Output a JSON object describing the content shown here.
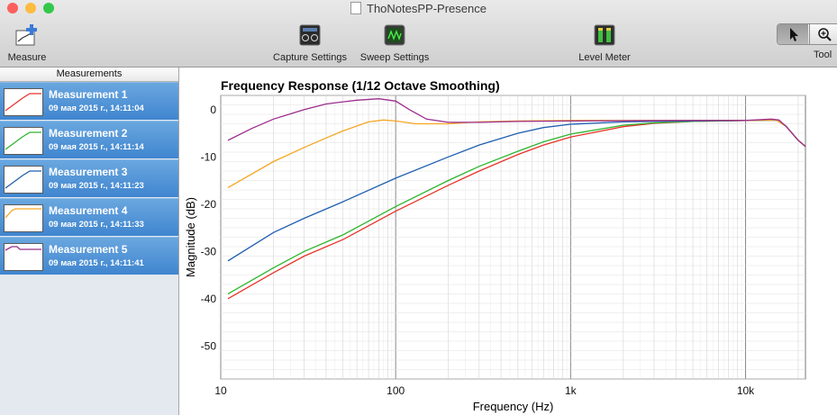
{
  "window": {
    "title": "ThoNotesPP-Presence",
    "traffic_colors": [
      "#fc605c",
      "#fdbc40",
      "#34c84a"
    ]
  },
  "toolbar": {
    "measure_label": "Measure",
    "capture_label": "Capture Settings",
    "sweep_label": "Sweep Settings",
    "level_label": "Level Meter",
    "tool_label": "Tool"
  },
  "sidebar": {
    "header": "Measurements",
    "items": [
      {
        "name": "Measurement 1",
        "date": "09 мая 2015 г., 14:11:04",
        "color": "#e8342a"
      },
      {
        "name": "Measurement 2",
        "date": "09 мая 2015 г., 14:11:14",
        "color": "#2db52d"
      },
      {
        "name": "Measurement 3",
        "date": "09 мая 2015 г., 14:11:23",
        "color": "#1f5fb0"
      },
      {
        "name": "Measurement 4",
        "date": "09 мая 2015 г., 14:11:33",
        "color": "#f5a623"
      },
      {
        "name": "Measurement 5",
        "date": "09 мая 2015 г., 14:11:41",
        "color": "#9b2d8c"
      }
    ]
  },
  "chart_data": {
    "type": "line",
    "title": "Frequency Response (1/12 Octave Smoothing)",
    "xlabel": "Frequency (Hz)",
    "ylabel": "Magnitude (dB)",
    "x_scale": "log",
    "xlim": [
      10,
      22000
    ],
    "ylim": [
      -57,
      3
    ],
    "x_ticks": [
      {
        "v": 10,
        "label": "10"
      },
      {
        "v": 100,
        "label": "100"
      },
      {
        "v": 1000,
        "label": "1k"
      },
      {
        "v": 10000,
        "label": "10k"
      }
    ],
    "y_ticks": [
      0,
      -10,
      -20,
      -30,
      -40,
      -50
    ],
    "grid": true,
    "series": [
      {
        "name": "Measurement 1",
        "color": "#e8342a",
        "points": [
          [
            11,
            -40
          ],
          [
            20,
            -34.5
          ],
          [
            30,
            -31
          ],
          [
            50,
            -27.5
          ],
          [
            100,
            -21.5
          ],
          [
            200,
            -16
          ],
          [
            300,
            -13
          ],
          [
            500,
            -9.5
          ],
          [
            700,
            -7.5
          ],
          [
            1000,
            -5.8
          ],
          [
            2000,
            -3.6
          ],
          [
            3000,
            -2.9
          ],
          [
            5000,
            -2.5
          ],
          [
            10000,
            -2.3
          ],
          [
            15000,
            -2.2
          ],
          [
            17000,
            -3.5
          ],
          [
            20000,
            -6.5
          ],
          [
            22000,
            -7.8
          ]
        ]
      },
      {
        "name": "Measurement 2",
        "color": "#2db52d",
        "points": [
          [
            11,
            -39
          ],
          [
            20,
            -33.5
          ],
          [
            30,
            -30
          ],
          [
            50,
            -26.5
          ],
          [
            100,
            -20.5
          ],
          [
            200,
            -15
          ],
          [
            300,
            -12
          ],
          [
            500,
            -8.8
          ],
          [
            700,
            -6.8
          ],
          [
            1000,
            -5.2
          ],
          [
            2000,
            -3.3
          ],
          [
            3000,
            -2.8
          ],
          [
            5000,
            -2.5
          ],
          [
            10000,
            -2.3
          ],
          [
            15000,
            -2.2
          ],
          [
            17000,
            -3.5
          ],
          [
            20000,
            -6.5
          ],
          [
            22000,
            -7.8
          ]
        ]
      },
      {
        "name": "Measurement 3",
        "color": "#1f5fb0",
        "points": [
          [
            11,
            -32
          ],
          [
            20,
            -26
          ],
          [
            30,
            -23
          ],
          [
            50,
            -19.5
          ],
          [
            100,
            -14.5
          ],
          [
            200,
            -10
          ],
          [
            300,
            -7.5
          ],
          [
            500,
            -5
          ],
          [
            700,
            -3.8
          ],
          [
            1000,
            -3.1
          ],
          [
            2000,
            -2.6
          ],
          [
            3000,
            -2.5
          ],
          [
            5000,
            -2.4
          ],
          [
            10000,
            -2.3
          ],
          [
            15000,
            -2.2
          ],
          [
            17000,
            -3.5
          ],
          [
            20000,
            -6.5
          ],
          [
            22000,
            -7.8
          ]
        ]
      },
      {
        "name": "Measurement 4",
        "color": "#f5a623",
        "points": [
          [
            11,
            -16.5
          ],
          [
            20,
            -11
          ],
          [
            30,
            -8
          ],
          [
            40,
            -6
          ],
          [
            50,
            -4.5
          ],
          [
            70,
            -2.6
          ],
          [
            85,
            -2.2
          ],
          [
            100,
            -2.4
          ],
          [
            130,
            -3
          ],
          [
            200,
            -3
          ],
          [
            300,
            -2.6
          ],
          [
            500,
            -2.4
          ],
          [
            1000,
            -2.3
          ],
          [
            5000,
            -2.3
          ],
          [
            10000,
            -2.3
          ],
          [
            15000,
            -2.2
          ],
          [
            17000,
            -3.5
          ],
          [
            20000,
            -6.5
          ],
          [
            22000,
            -7.8
          ]
        ]
      },
      {
        "name": "Measurement 5",
        "color": "#9b2d8c",
        "points": [
          [
            11,
            -6.5
          ],
          [
            15,
            -4
          ],
          [
            20,
            -2
          ],
          [
            30,
            0
          ],
          [
            40,
            1.2
          ],
          [
            60,
            2
          ],
          [
            80,
            2.3
          ],
          [
            100,
            1.8
          ],
          [
            120,
            0
          ],
          [
            150,
            -2
          ],
          [
            200,
            -2.7
          ],
          [
            300,
            -2.7
          ],
          [
            500,
            -2.5
          ],
          [
            1000,
            -2.4
          ],
          [
            5000,
            -2.3
          ],
          [
            10000,
            -2.3
          ],
          [
            14000,
            -2
          ],
          [
            15500,
            -2.2
          ],
          [
            17000,
            -3.5
          ],
          [
            20000,
            -6.5
          ],
          [
            22000,
            -7.8
          ]
        ]
      }
    ]
  }
}
